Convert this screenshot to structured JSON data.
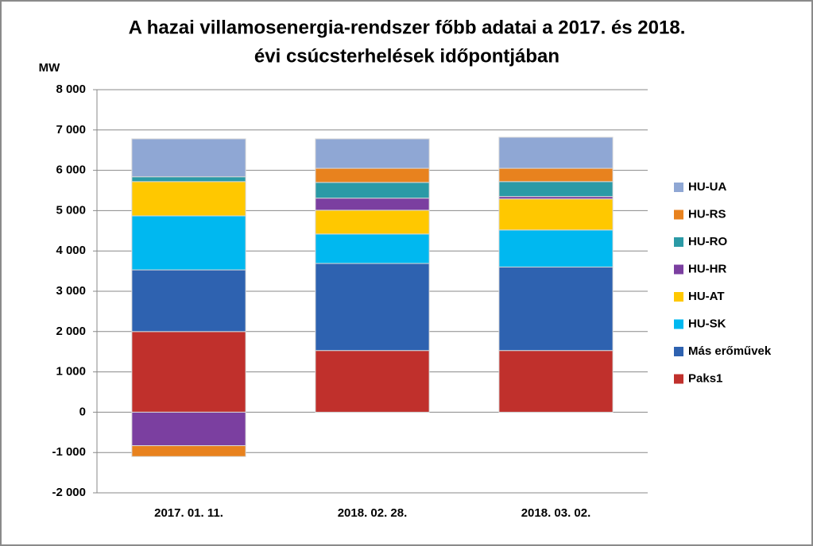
{
  "chart_data": {
    "type": "stacked_bar",
    "title": [
      "A hazai villamosenergia-rendszer főbb adatai a 2017. és 2018.",
      "évi csúcsterhelések időpontjában"
    ],
    "y_axis_label": "MW",
    "categories": [
      "2017. 01. 11.",
      "2018. 02. 28.",
      "2018. 03. 02."
    ],
    "series": [
      {
        "name": "Paks1",
        "color": "#c0302c",
        "values": [
          2000,
          1530,
          1530
        ]
      },
      {
        "name": "Más erőművek",
        "color": "#2e62b0",
        "values": [
          1530,
          2160,
          2070
        ]
      },
      {
        "name": "HU-SK",
        "color": "#00b8f0",
        "values": [
          1340,
          730,
          920
        ]
      },
      {
        "name": "HU-AT",
        "color": "#ffc800",
        "values": [
          850,
          590,
          770
        ]
      },
      {
        "name": "HU-HR",
        "color": "#7b3fa0",
        "values": [
          -830,
          300,
          60
        ]
      },
      {
        "name": "HU-RO",
        "color": "#2b9aa6",
        "values": [
          120,
          390,
          370
        ]
      },
      {
        "name": "HU-RS",
        "color": "#e8821e",
        "values": [
          -270,
          350,
          330
        ]
      },
      {
        "name": "HU-UA",
        "color": "#8fa7d4",
        "values": [
          940,
          730,
          770
        ]
      }
    ],
    "ylim": [
      -2000,
      8000
    ],
    "yticks": [
      {
        "value": -2000,
        "label": "-2 000"
      },
      {
        "value": -1000,
        "label": "-1 000"
      },
      0,
      {
        "value": 1000,
        "label": "1 000"
      },
      {
        "value": 2000,
        "label": "2 000"
      },
      {
        "value": 3000,
        "label": "3 000"
      },
      {
        "value": 4000,
        "label": "4 000"
      },
      {
        "value": 5000,
        "label": "5 000"
      },
      {
        "value": 6000,
        "label": "6 000"
      },
      {
        "value": 7000,
        "label": "7 000"
      },
      {
        "value": 8000,
        "label": "8 000"
      }
    ],
    "grid": true,
    "legend": "right"
  }
}
